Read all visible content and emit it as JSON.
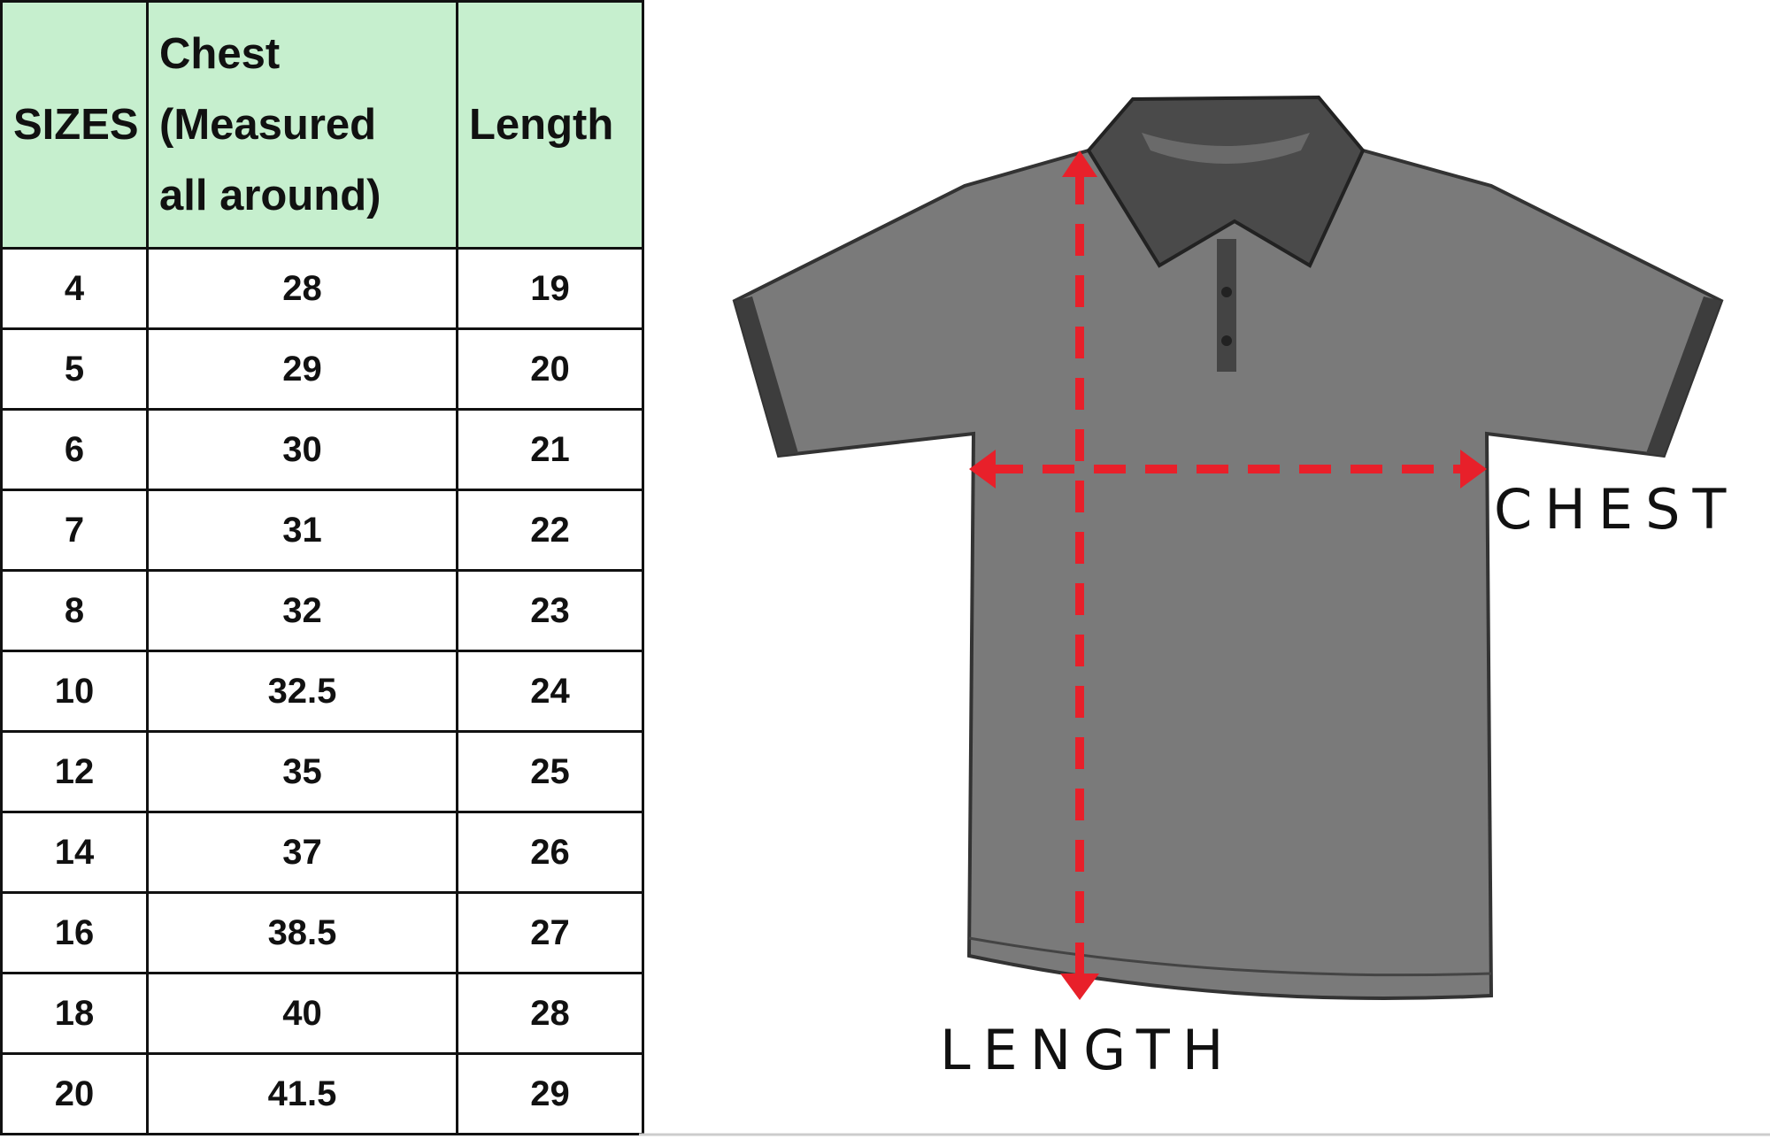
{
  "table": {
    "headers": [
      "SIZES",
      "Chest (Measured all around)",
      "Length"
    ],
    "header_lines": {
      "chest": [
        "Chest",
        "(Measured",
        "all around)"
      ]
    },
    "rows": [
      [
        "4",
        "28",
        "19"
      ],
      [
        "5",
        "29",
        "20"
      ],
      [
        "6",
        "30",
        "21"
      ],
      [
        "7",
        "31",
        "22"
      ],
      [
        "8",
        "32",
        "23"
      ],
      [
        "10",
        "32.5",
        "24"
      ],
      [
        "12",
        "35",
        "25"
      ],
      [
        "14",
        "37",
        "26"
      ],
      [
        "16",
        "38.5",
        "27"
      ],
      [
        "18",
        "40",
        "28"
      ],
      [
        "20",
        "41.5",
        "29"
      ]
    ],
    "header_bg": "#c6efce"
  },
  "diagram": {
    "chest_label": "CHEST",
    "length_label": "LENGTH",
    "arrow_color": "#e8202a",
    "shirt_color": "#7a7a7a"
  }
}
